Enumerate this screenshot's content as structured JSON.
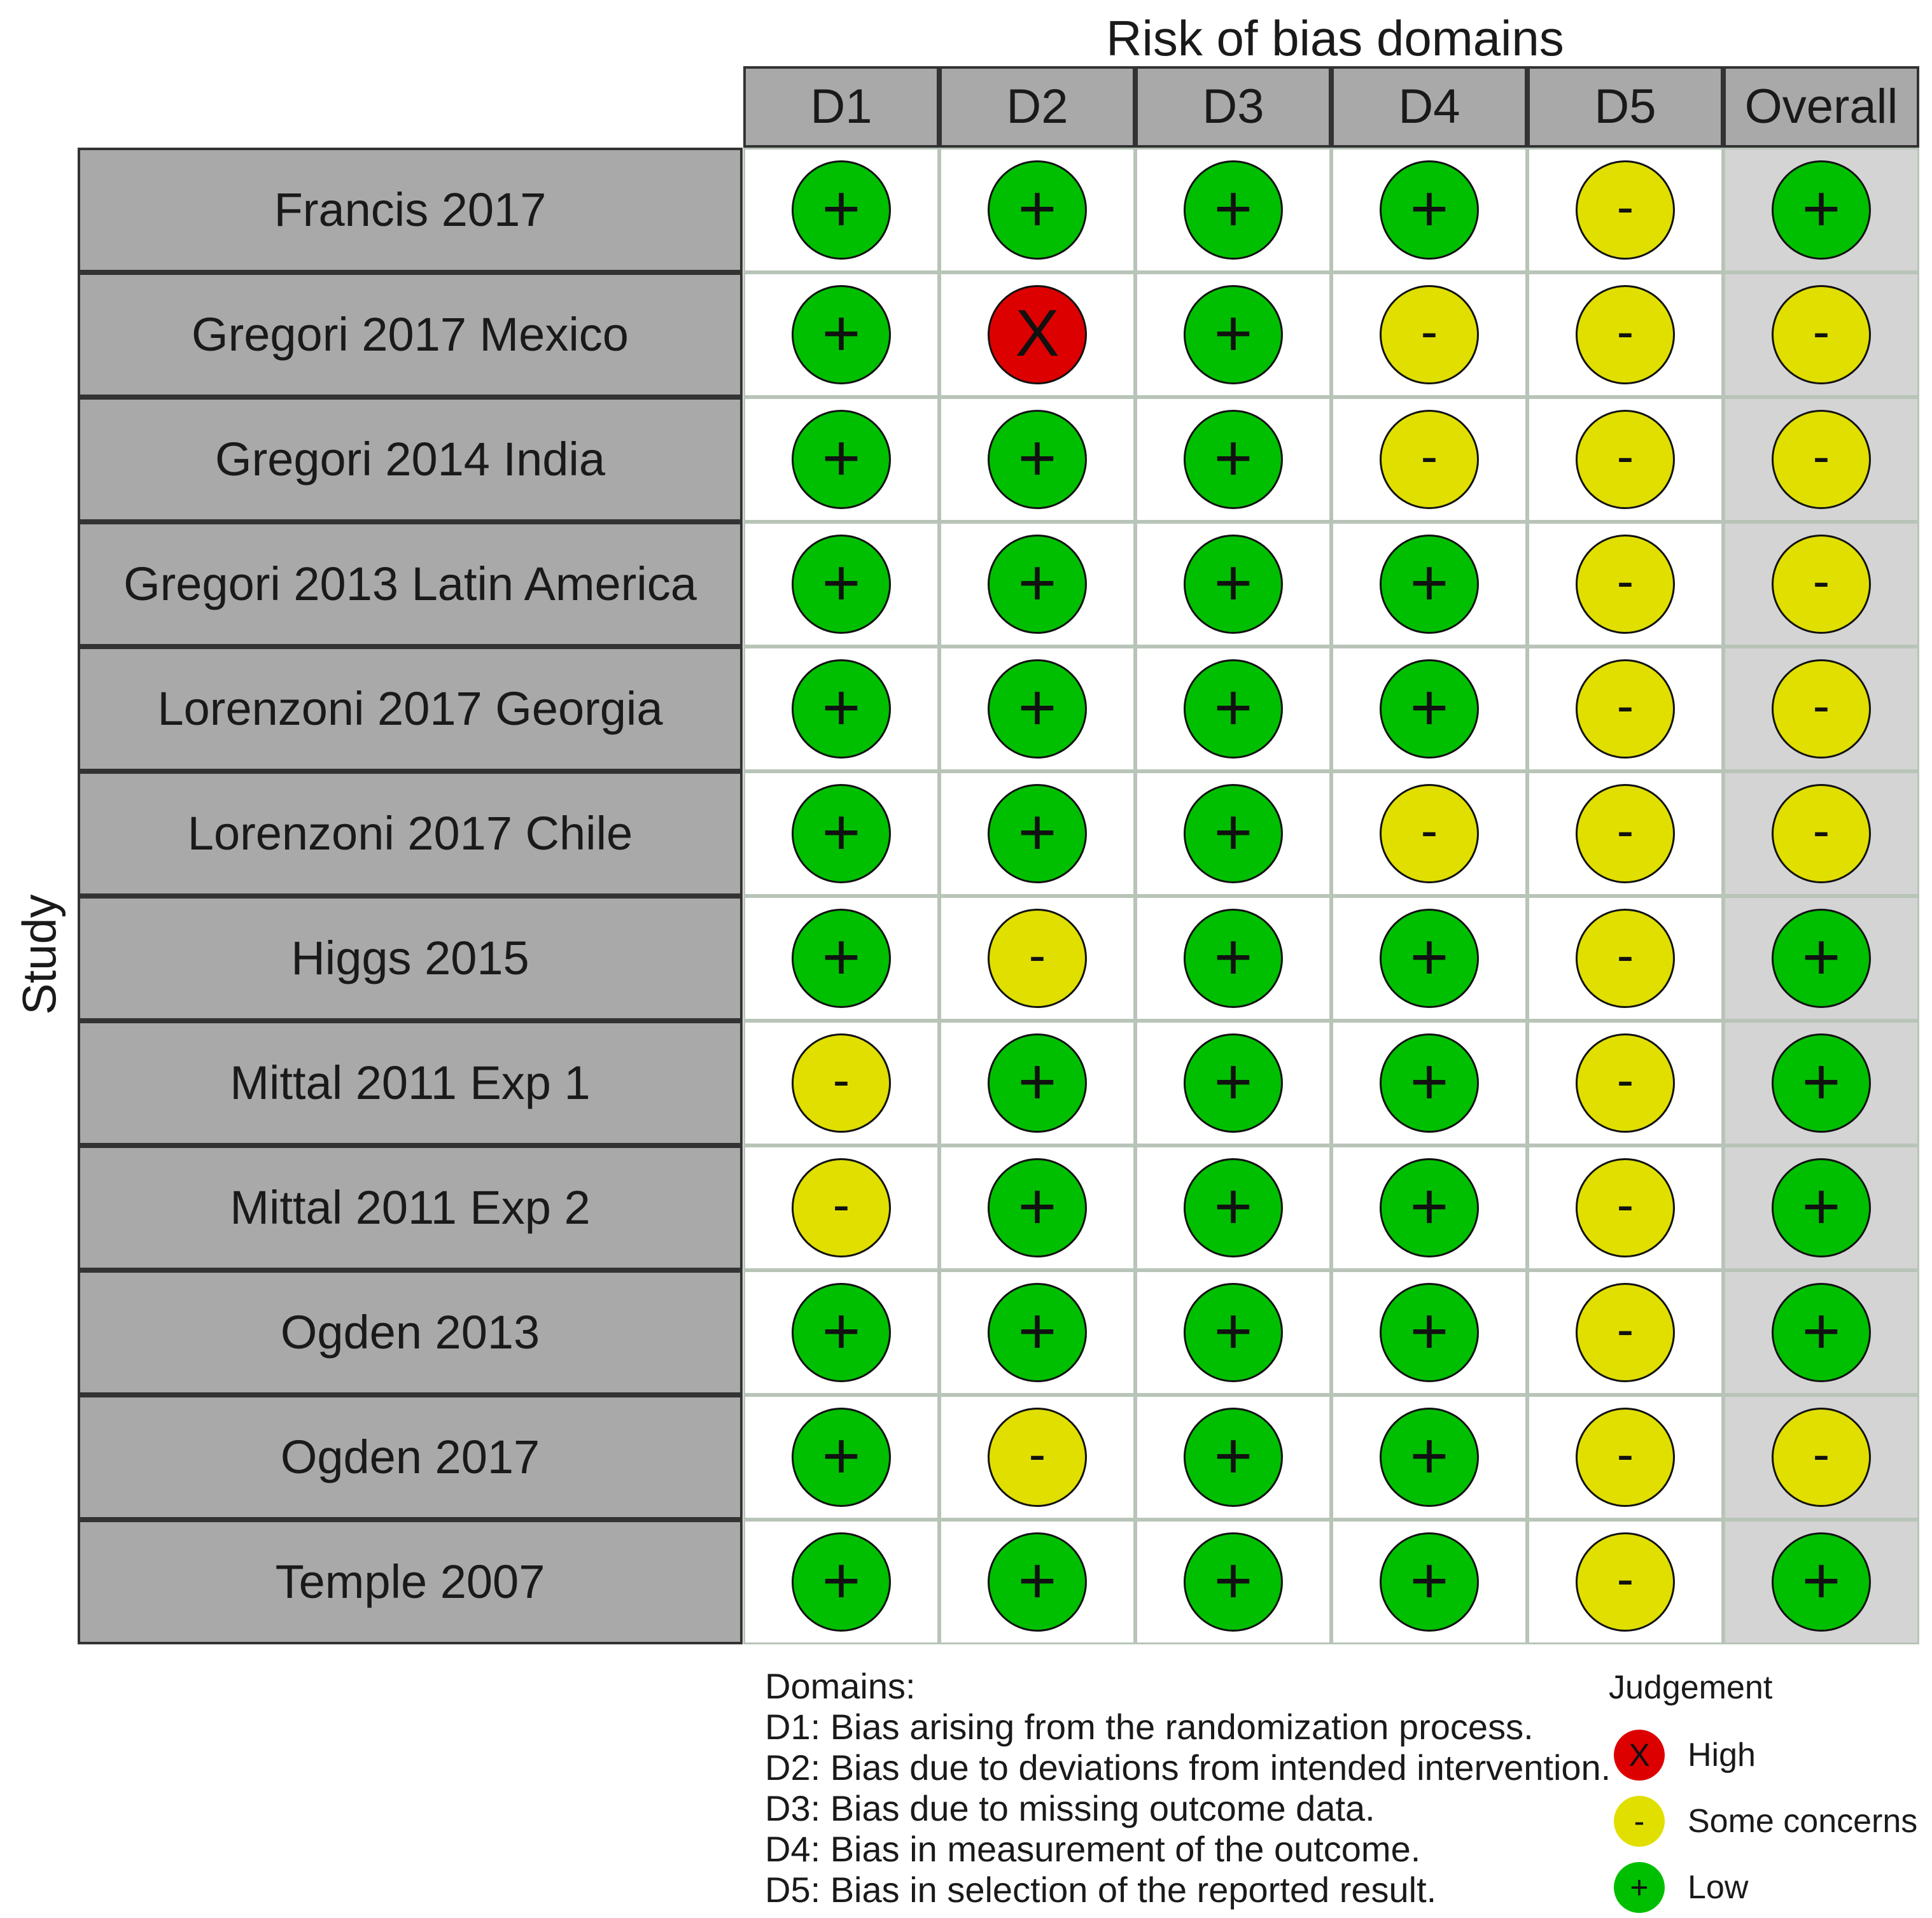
{
  "title": "Risk of bias domains",
  "y_label": "Study",
  "columns": [
    "D1",
    "D2",
    "D3",
    "D4",
    "D5",
    "Overall"
  ],
  "colors": {
    "High": "#dd0000",
    "Some concerns": "#e0df00",
    "Low": "#00bf00"
  },
  "symbols": {
    "High": "X",
    "Some concerns": "-",
    "Low": "+"
  },
  "chart_data": {
    "type": "table",
    "studies": [
      "Francis 2017",
      "Gregori 2017 Mexico",
      "Gregori 2014 India",
      "Gregori 2013 Latin America",
      "Lorenzoni 2017 Georgia",
      "Lorenzoni 2017 Chile",
      "Higgs 2015",
      "Mittal 2011 Exp 1",
      "Mittal 2011 Exp 2",
      "Ogden 2013",
      "Ogden 2017",
      "Temple 2007"
    ],
    "judgements": [
      [
        "Low",
        "Low",
        "Low",
        "Low",
        "Some concerns",
        "Low"
      ],
      [
        "Low",
        "High",
        "Low",
        "Some concerns",
        "Some concerns",
        "Some concerns"
      ],
      [
        "Low",
        "Low",
        "Low",
        "Some concerns",
        "Some concerns",
        "Some concerns"
      ],
      [
        "Low",
        "Low",
        "Low",
        "Low",
        "Some concerns",
        "Some concerns"
      ],
      [
        "Low",
        "Low",
        "Low",
        "Low",
        "Some concerns",
        "Some concerns"
      ],
      [
        "Low",
        "Low",
        "Low",
        "Some concerns",
        "Some concerns",
        "Some concerns"
      ],
      [
        "Low",
        "Some concerns",
        "Low",
        "Low",
        "Some concerns",
        "Low"
      ],
      [
        "Some concerns",
        "Low",
        "Low",
        "Low",
        "Some concerns",
        "Low"
      ],
      [
        "Some concerns",
        "Low",
        "Low",
        "Low",
        "Some concerns",
        "Low"
      ],
      [
        "Low",
        "Low",
        "Low",
        "Low",
        "Some concerns",
        "Low"
      ],
      [
        "Low",
        "Some concerns",
        "Low",
        "Low",
        "Some concerns",
        "Some concerns"
      ],
      [
        "Low",
        "Low",
        "Low",
        "Low",
        "Some concerns",
        "Low"
      ]
    ]
  },
  "domains": {
    "heading": "Domains:",
    "items": [
      "D1: Bias arising from the randomization process.",
      "D2: Bias due to deviations from intended intervention.",
      "D3: Bias due to missing outcome data.",
      "D4: Bias in measurement of the outcome.",
      "D5: Bias in selection of the reported result."
    ]
  },
  "legend": {
    "title": "Judgement",
    "items": [
      "High",
      "Some concerns",
      "Low"
    ]
  }
}
